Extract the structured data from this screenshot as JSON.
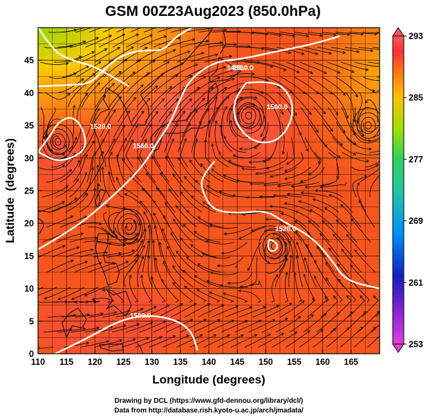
{
  "chart_data": {
    "type": "heatmap",
    "title": "GSM 00Z23Aug2023 (850.0hPa)",
    "xlabel": "Longitude (degrees)",
    "ylabel": "Latitude  (degrees)",
    "xlim": [
      110,
      170
    ],
    "ylim": [
      0,
      50
    ],
    "xticks": [
      "110",
      "115",
      "120",
      "125",
      "130",
      "135",
      "140",
      "145",
      "150",
      "155",
      "160",
      "165"
    ],
    "yticks": [
      "0",
      "5",
      "10",
      "15",
      "20",
      "25",
      "30",
      "35",
      "40",
      "45"
    ],
    "grid": true,
    "colorbar": {
      "range": [
        253,
        293
      ],
      "ticks": [
        "253",
        "261",
        "269",
        "277",
        "285",
        "293"
      ],
      "colors": [
        "#e040e0",
        "#1020c0",
        "#0090ff",
        "#30d060",
        "#a0e000",
        "#ffc000",
        "#ff7a10",
        "#ff3030",
        "#ff5858"
      ],
      "extend": "both"
    },
    "contours": [
      {
        "label": "1560.0",
        "lon": 146,
        "lat": 43.5
      },
      {
        "label": "1560.0",
        "lon": 128.5,
        "lat": 31.5
      },
      {
        "label": "1560.0",
        "lon": 152,
        "lat": 37.5
      },
      {
        "label": "1520.0",
        "lon": 121,
        "lat": 34.5
      },
      {
        "label": "1520.0",
        "lon": 153.5,
        "lat": 18.8
      },
      {
        "label": "1500.0",
        "lon": 128,
        "lat": 5.5
      },
      {
        "label": "1480.0",
        "lon": 145,
        "lat": 43.5
      }
    ],
    "vortices": [
      {
        "lon": 147,
        "lat": 36.5
      },
      {
        "lon": 113.5,
        "lat": 32.5
      },
      {
        "lon": 126,
        "lat": 19.5
      },
      {
        "lon": 151.5,
        "lat": 16.5
      },
      {
        "lon": 168,
        "lat": 35
      }
    ]
  },
  "credits": {
    "line1": "Drawing by DCL (https://www.gfd-dennou.org/library/dcl/)",
    "line2": "Data from http://database.rish.kyoto-u.ac.jp/arch/jmadata/"
  }
}
